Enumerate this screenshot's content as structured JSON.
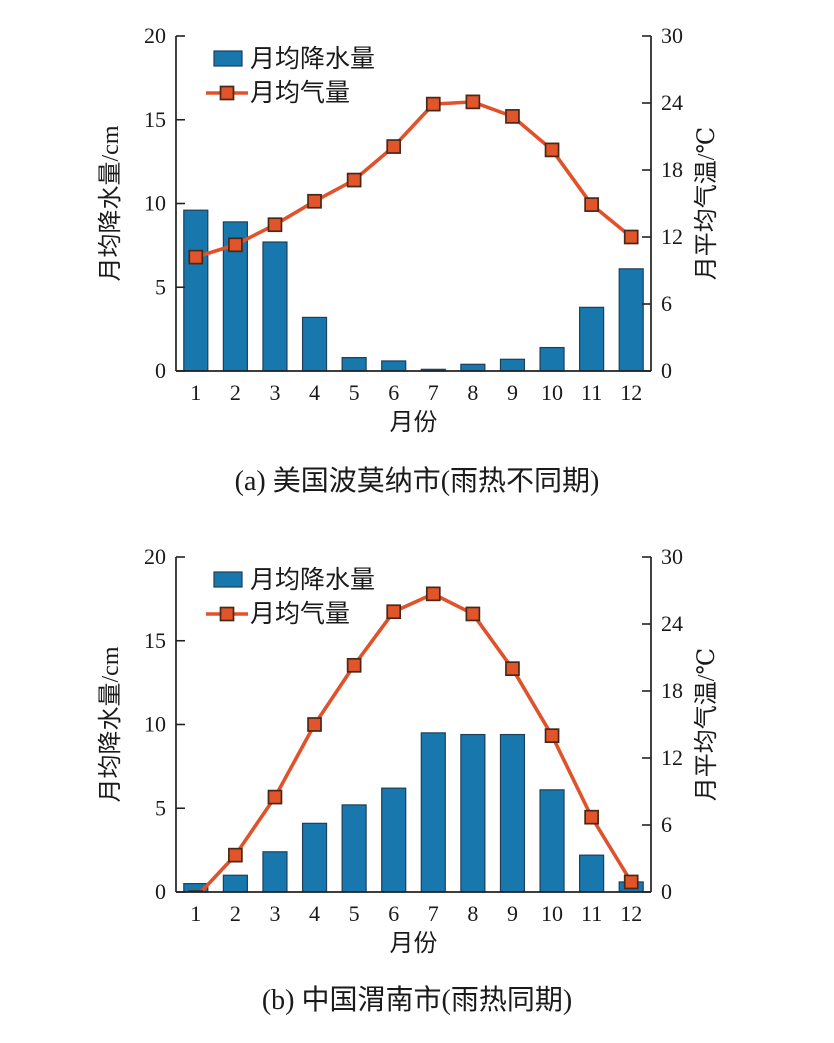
{
  "page": {
    "background": "#ffffff",
    "text_color": "#1a1a1a",
    "axis_color": "#222222"
  },
  "chart_data": [
    {
      "type": "bar+line",
      "caption": "(a) 美国波莫纳市(雨热不同期)",
      "categories": [
        1,
        2,
        3,
        4,
        5,
        6,
        7,
        8,
        9,
        10,
        11,
        12
      ],
      "xlabel": "月份",
      "left_axis": {
        "label": "月均降水量/cm",
        "ticks": [
          0,
          5,
          10,
          15,
          20
        ],
        "range": [
          0,
          20
        ]
      },
      "right_axis": {
        "label": "月平均气温/℃",
        "ticks": [
          0,
          6,
          12,
          18,
          24,
          30
        ],
        "range": [
          0,
          30
        ]
      },
      "legend": {
        "position": "top-left-inside",
        "entries": [
          "月均降水量",
          "月均气量"
        ]
      },
      "grid": false,
      "series": [
        {
          "name": "月均降水量",
          "type": "bar",
          "axis": "left",
          "unit": "cm",
          "color": "#1878ae",
          "edge_color": "#1d3f5a",
          "values": [
            9.6,
            8.9,
            7.7,
            3.2,
            0.8,
            0.6,
            0.1,
            0.4,
            0.7,
            1.4,
            3.8,
            6.1
          ]
        },
        {
          "name": "月均气量",
          "type": "line",
          "axis": "right",
          "unit": "℃",
          "color": "#e0522a",
          "marker": "square",
          "marker_fill": "#e25429",
          "marker_edge": "#4a2817",
          "values": [
            10.2,
            11.3,
            13.1,
            15.2,
            17.1,
            20.1,
            23.9,
            24.1,
            22.8,
            19.8,
            14.9,
            12.0
          ]
        }
      ]
    },
    {
      "type": "bar+line",
      "caption": "(b) 中国渭南市(雨热同期)",
      "categories": [
        1,
        2,
        3,
        4,
        5,
        6,
        7,
        8,
        9,
        10,
        11,
        12
      ],
      "xlabel": "月份",
      "left_axis": {
        "label": "月均降水量/cm",
        "ticks": [
          0,
          5,
          10,
          15,
          20
        ],
        "range": [
          0,
          20
        ]
      },
      "right_axis": {
        "label": "月平均气温/℃",
        "ticks": [
          0,
          6,
          12,
          18,
          24,
          30
        ],
        "range": [
          0,
          30
        ]
      },
      "legend": {
        "position": "top-left-inside",
        "entries": [
          "月均降水量",
          "月均气量"
        ]
      },
      "grid": false,
      "series": [
        {
          "name": "月均降水量",
          "type": "bar",
          "axis": "left",
          "unit": "cm",
          "color": "#1878ae",
          "edge_color": "#1d3f5a",
          "values": [
            0.5,
            1.0,
            2.4,
            4.1,
            5.2,
            6.2,
            9.5,
            9.4,
            9.4,
            6.1,
            2.2,
            0.6
          ]
        },
        {
          "name": "月均气量",
          "type": "line",
          "axis": "right",
          "unit": "℃",
          "color": "#e0522a",
          "marker": "square",
          "marker_fill": "#e25429",
          "marker_edge": "#4a2817",
          "values": [
            -0.5,
            3.3,
            8.5,
            15.0,
            20.3,
            25.1,
            26.7,
            24.9,
            20.0,
            14.0,
            6.7,
            0.9
          ]
        }
      ]
    }
  ]
}
